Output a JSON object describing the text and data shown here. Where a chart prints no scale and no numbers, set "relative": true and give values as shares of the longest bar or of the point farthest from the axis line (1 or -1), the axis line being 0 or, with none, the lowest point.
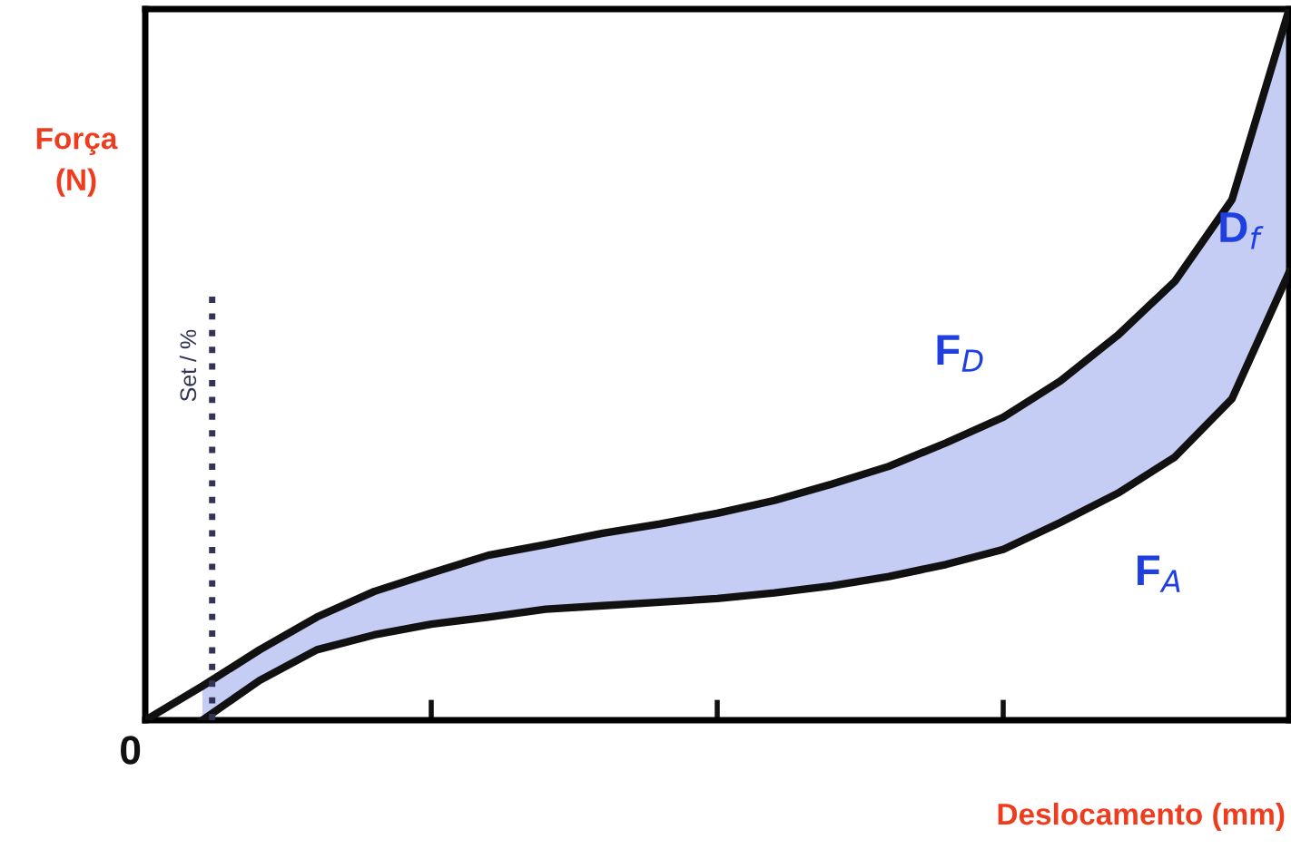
{
  "chart_data": {
    "type": "line",
    "relative": true,
    "xlabel": "Deslocamento (mm)",
    "ylabel": "Força\n(N)",
    "categories": [
      null,
      null,
      null,
      null,
      null,
      null,
      null,
      null,
      null,
      null,
      null,
      null,
      null,
      null,
      null,
      null,
      null,
      null,
      null,
      null,
      null
    ],
    "series": [
      {
        "name": "F$_{D}$",
        "color": "#111111",
        "values": [
          0,
          0.048,
          0.099,
          0.145,
          0.181,
          0.207,
          0.232,
          0.247,
          0.263,
          0.276,
          0.291,
          0.309,
          0.332,
          0.357,
          0.39,
          0.426,
          0.477,
          0.541,
          0.617,
          0.732,
          1.0
        ],
        "lower": [
          null,
          0,
          0.056,
          0.099,
          0.12,
          0.135,
          0.145,
          0.156,
          0.161,
          0.166,
          0.171,
          0.179,
          0.189,
          0.202,
          0.219,
          0.24,
          0.278,
          0.319,
          0.37,
          0.452,
          0.63
        ],
        "upper": [
          null,
          0.048,
          0.099,
          0.145,
          0.181,
          0.207,
          0.232,
          0.247,
          0.263,
          0.276,
          0.291,
          0.309,
          0.332,
          0.357,
          0.39,
          0.426,
          0.477,
          0.541,
          0.617,
          0.732,
          1.0
        ]
      },
      {
        "name": "F$_{A}$",
        "color": "#111111",
        "values": [
          null,
          0,
          0.056,
          0.099,
          0.12,
          0.135,
          0.145,
          0.156,
          0.161,
          0.166,
          0.171,
          0.179,
          0.189,
          0.202,
          0.219,
          0.24,
          0.278,
          0.319,
          0.37,
          0.452,
          0.63
        ]
      }
    ],
    "annotations": [
      "0",
      "D$_{f}$",
      "Set / %"
    ],
    "legend": false
  }
}
